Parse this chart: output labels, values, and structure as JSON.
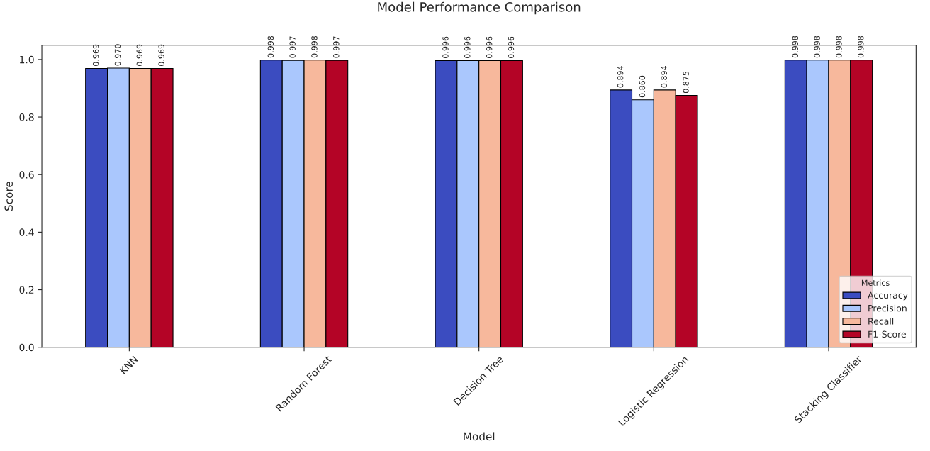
{
  "chart_data": {
    "type": "bar",
    "title": "Model Performance Comparison",
    "xlabel": "Model",
    "ylabel": "Score",
    "legend_title": "Metrics",
    "categories": [
      "KNN",
      "Random Forest",
      "Decision Tree",
      "Logistic Regression",
      "Stacking Classifier"
    ],
    "series": [
      {
        "name": "Accuracy",
        "color": "#3b4cc0",
        "values": [
          0.969,
          0.998,
          0.996,
          0.894,
          0.998
        ],
        "value_labels": [
          "0.969",
          "0.998",
          "0.996",
          "0.894",
          "0.998"
        ]
      },
      {
        "name": "Precision",
        "color": "#aac7fd",
        "values": [
          0.97,
          0.997,
          0.996,
          0.86,
          0.998
        ],
        "value_labels": [
          "0.970",
          "0.997",
          "0.996",
          "0.860",
          "0.998"
        ]
      },
      {
        "name": "Recall",
        "color": "#f7b89c",
        "values": [
          0.969,
          0.998,
          0.996,
          0.894,
          0.998
        ],
        "value_labels": [
          "0.969",
          "0.998",
          "0.996",
          "0.894",
          "0.998"
        ]
      },
      {
        "name": "F1-Score",
        "color": "#b40426",
        "values": [
          0.969,
          0.997,
          0.996,
          0.875,
          0.998
        ],
        "value_labels": [
          "0.969",
          "0.997",
          "0.996",
          "0.875",
          "0.998"
        ]
      }
    ],
    "ylim": [
      0,
      1.05
    ],
    "yticks": [
      {
        "value": 0,
        "label": "0.0"
      },
      {
        "value": 0.2,
        "label": "0.2"
      },
      {
        "value": 0.4,
        "label": "0.4"
      },
      {
        "value": 0.6,
        "label": "0.6"
      },
      {
        "value": 0.8,
        "label": "0.8"
      },
      {
        "value": 1.0,
        "label": "1.0"
      }
    ],
    "legend": "bottom right",
    "grid": false
  }
}
